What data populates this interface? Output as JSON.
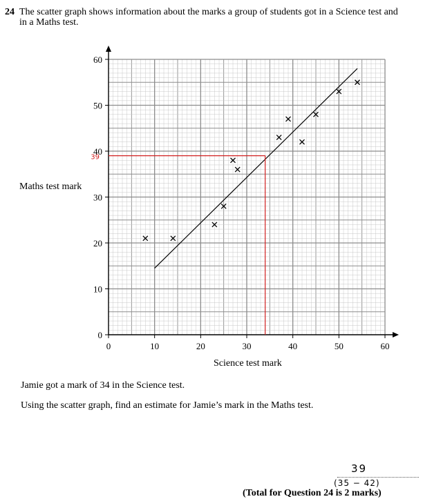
{
  "question": {
    "number": "24",
    "text": "The scatter graph shows information about the marks a group of students got in a Science test and in a Maths test.",
    "line1": "Jamie got a mark of 34 in the Science test.",
    "line2": "Using the scatter graph, find an estimate for Jamie’s mark in the Maths test.",
    "answer_handwritten": "39",
    "answer_range_handwritten": "(35 − 42)",
    "total": "(Total for Question 24 is 2 marks)"
  },
  "colors": {
    "ink": "#000000",
    "grid_major": "#8c8c8c",
    "grid_minor": "#c8c8c8",
    "annotation": "#d21f1f"
  },
  "chart_data": {
    "type": "scatter",
    "xlabel": "Science test mark",
    "ylabel": "Maths test mark",
    "xlim": [
      0,
      60
    ],
    "ylim": [
      0,
      60
    ],
    "x_ticks": [
      0,
      10,
      20,
      30,
      40,
      50,
      60
    ],
    "y_ticks": [
      0,
      10,
      20,
      30,
      40,
      50,
      60
    ],
    "grid": true,
    "marker": "cross",
    "points": [
      [
        8,
        21
      ],
      [
        14,
        21
      ],
      [
        23,
        24
      ],
      [
        25,
        28
      ],
      [
        27,
        38
      ],
      [
        28,
        36
      ],
      [
        37,
        43
      ],
      [
        39,
        47
      ],
      [
        42,
        42
      ],
      [
        45,
        48
      ],
      [
        50,
        53
      ],
      [
        54,
        55
      ]
    ],
    "line_of_best_fit": {
      "from": [
        10,
        14.5
      ],
      "to": [
        54,
        58
      ]
    },
    "annotation": {
      "x_value": 34,
      "read_value": 39,
      "label": "39"
    }
  }
}
